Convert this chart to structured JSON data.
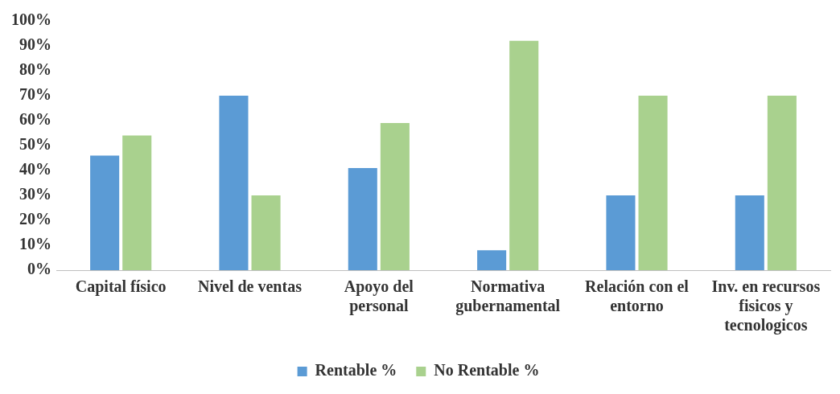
{
  "chart_data": {
    "type": "bar",
    "categories": [
      "Capital físico",
      "Nivel de ventas",
      "Apoyo del personal",
      "Normativa gubernamental",
      "Relación con el entorno",
      "Inv. en recursos fisicos y tecnologicos"
    ],
    "series": [
      {
        "name": "Rentable %",
        "color": "#5b9bd5",
        "values": [
          46,
          70,
          41,
          8,
          30,
          30
        ]
      },
      {
        "name": "No Rentable %",
        "color": "#a9d18e",
        "values": [
          54,
          30,
          59,
          92,
          70,
          70
        ]
      }
    ],
    "ylim": [
      0,
      100
    ],
    "yticks": [
      {
        "value": 0,
        "label": "0%"
      },
      {
        "value": 10,
        "label": "10%"
      },
      {
        "value": 20,
        "label": "20%"
      },
      {
        "value": 30,
        "label": "30%"
      },
      {
        "value": 40,
        "label": "40%"
      },
      {
        "value": 50,
        "label": "50%"
      },
      {
        "value": 60,
        "label": "60%"
      },
      {
        "value": 70,
        "label": "70%"
      },
      {
        "value": 80,
        "label": "80%"
      },
      {
        "value": 90,
        "label": "90%"
      },
      {
        "value": 100,
        "label": "100%"
      }
    ],
    "grid": false,
    "legend": "bottom"
  }
}
